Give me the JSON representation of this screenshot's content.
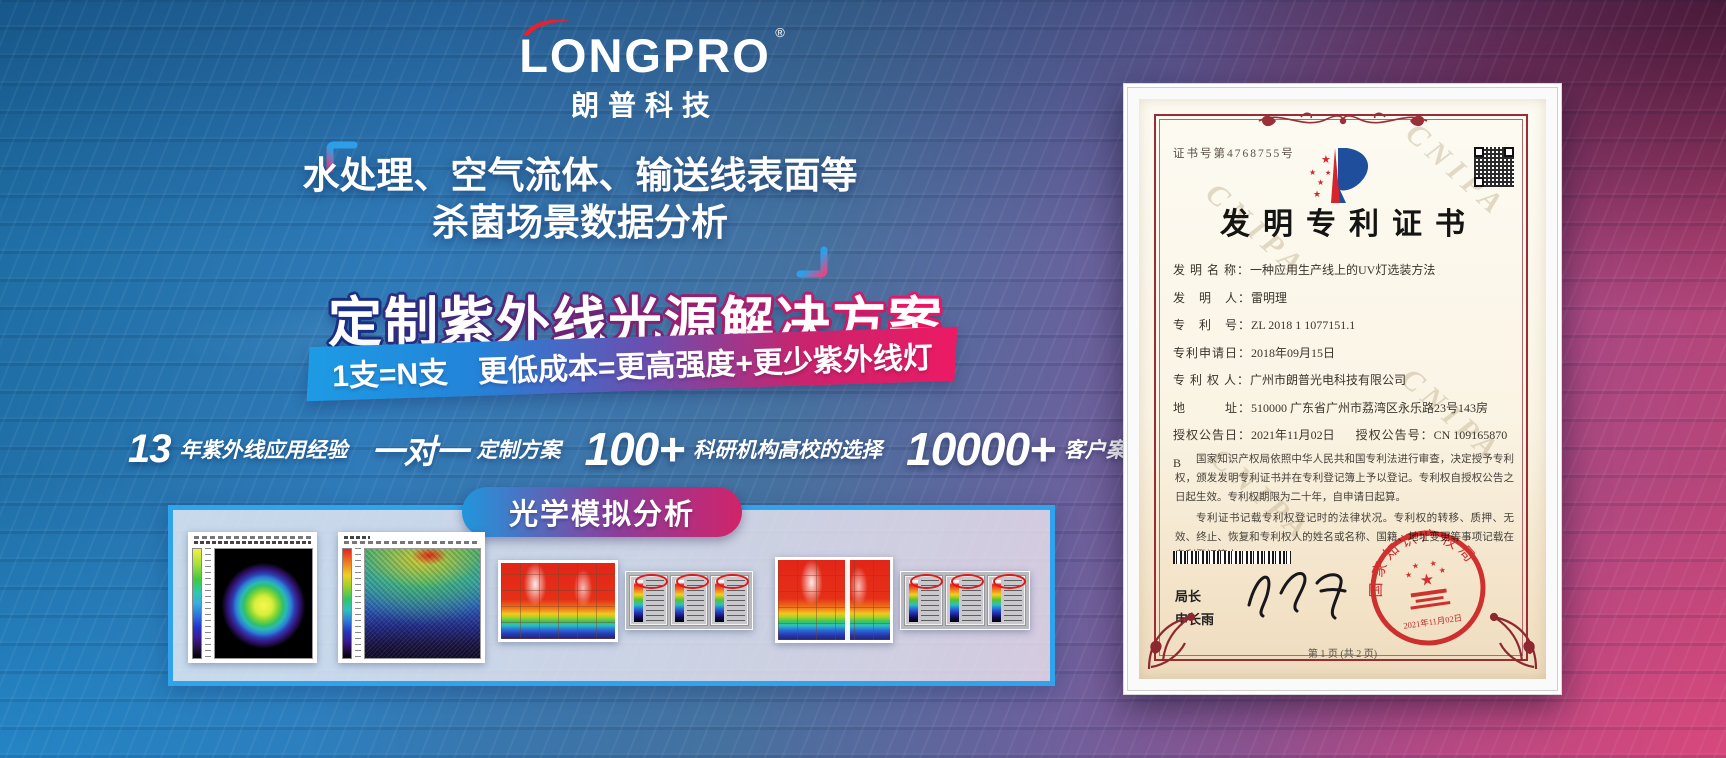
{
  "logo": {
    "name": "LONGPRO",
    "reg": "®",
    "cn": "朗普科技"
  },
  "headline": {
    "line1": "水处理、空气流体、输送线表面等",
    "line2": "杀菌场景数据分析"
  },
  "solution": {
    "title": "定制紫外线光源解决方案",
    "subtitle": "1支=N支　更低成本=更高强度+更少紫外线灯"
  },
  "stats": {
    "items": [
      {
        "num": "13",
        "label": "年紫外线应用经验"
      },
      {
        "num": "一对一",
        "label": "定制方案"
      },
      {
        "num": "100+",
        "label": "科研机构高校的选择"
      },
      {
        "num": "10000+",
        "label": "客户案例见证"
      }
    ]
  },
  "simulation": {
    "badge": "光学模拟分析"
  },
  "certificate": {
    "cert_no": "证书号第4768755号",
    "title": "发明专利证书",
    "watermark": "CNIPA",
    "fields": {
      "name_label": "发 明 名 称：",
      "name": "一种应用生产线上的UV灯选装方法",
      "inventor_label": "发　明　人：",
      "inventor": "雷明理",
      "patent_no_label": "专　利　号：",
      "patent_no": "ZL 2018 1 1077151.1",
      "apply_date_label": "专利申请日：",
      "apply_date": "2018年09月15日",
      "patentee_label": "专 利 权 人：",
      "patentee": "广州市朗普光电科技有限公司",
      "address_label": "地　　　址：",
      "address": "510000 广东省广州市荔湾区永乐路23号143房",
      "grant_date_label": "授权公告日：",
      "grant_date": "2021年11月02日",
      "grant_no_label": "授权公告号：",
      "grant_no": "CN 109165870 B"
    },
    "body_p1": "国家知识产权局依照中华人民共和国专利法进行审查，决定授予专利权，颁发发明专利证书并在专利登记簿上予以登记。专利权自授权公告之日起生效。专利权期限为二十年，自申请日起算。",
    "body_p2": "专利证书记载专利权登记时的法律状况。专利权的转移、质押、无效、终止、恢复和专利权人的姓名或名称、国籍、地址变更等事项记载在专利登记簿上。",
    "director_label": "局长",
    "director": "申长雨",
    "seal_text": "国家知识产权局",
    "seal_date": "2021年11月02日",
    "page": "第 1 页 (共 2 页)"
  },
  "colors": {
    "accent_blue": "#2FA3EC",
    "accent_pink": "#EC1A63",
    "logo_red": "#E8212E",
    "seal_red": "#D6252A"
  }
}
